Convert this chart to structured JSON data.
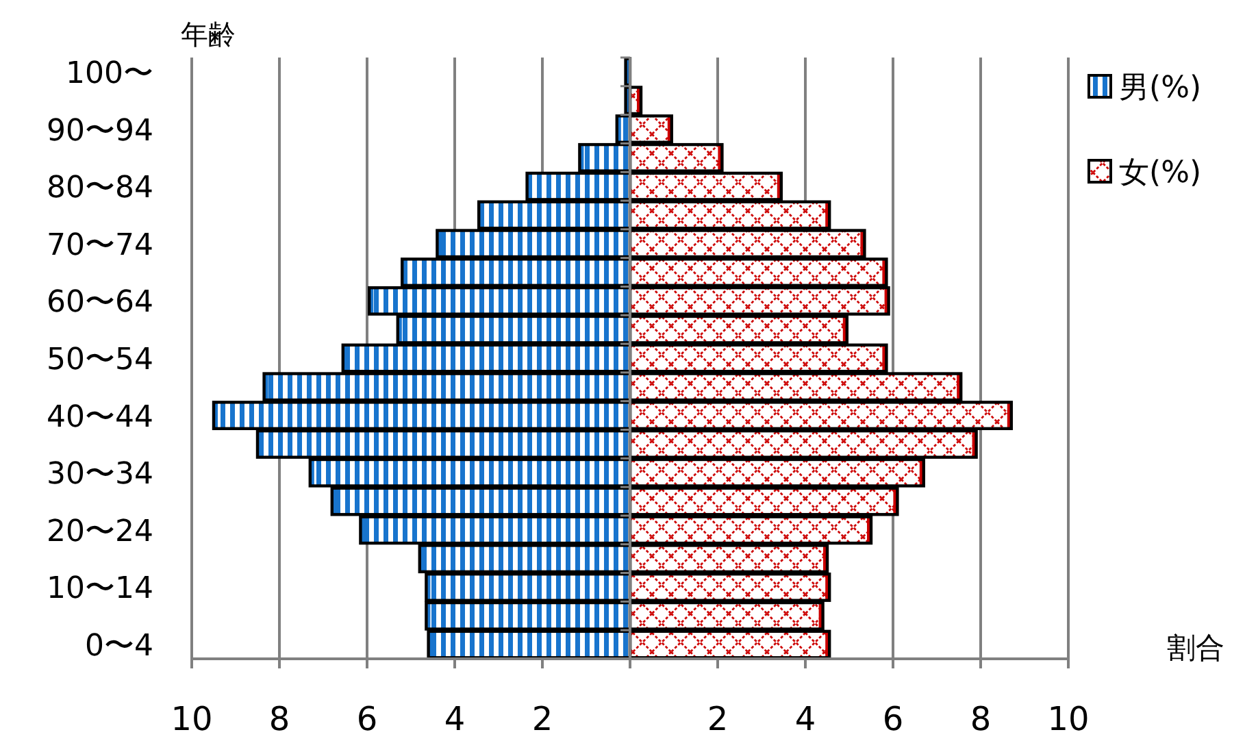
{
  "chart_data": {
    "type": "bar",
    "orientation": "horizontal",
    "stacked": true,
    "ylabel": "年齢",
    "xlabel": "割合",
    "categories": [
      "100〜",
      null,
      "90〜94",
      null,
      "80〜84",
      null,
      "70〜74",
      null,
      "60〜64",
      null,
      "50〜54",
      null,
      "40〜44",
      null,
      "30〜34",
      null,
      "20〜24",
      null,
      "10〜14",
      null,
      "0〜4"
    ],
    "series": [
      {
        "name": "男(%)",
        "color": "#1874cd",
        "values": [
          -0.1,
          -0.1,
          -0.3,
          -1.15,
          -2.35,
          -3.45,
          -4.4,
          -5.2,
          -5.95,
          -5.3,
          -6.55,
          -8.35,
          -9.5,
          -8.5,
          -7.3,
          -6.8,
          -6.15,
          -4.8,
          -4.65,
          -4.65,
          -4.6
        ]
      },
      {
        "name": "女(%)",
        "color": "#cc0000",
        "values": [
          0.0,
          0.25,
          0.95,
          2.1,
          3.45,
          4.55,
          5.35,
          5.85,
          5.9,
          4.95,
          5.85,
          7.55,
          8.7,
          7.9,
          6.7,
          6.1,
          5.5,
          4.5,
          4.55,
          4.4,
          4.55
        ]
      }
    ],
    "xlim": [
      -10,
      10
    ],
    "xticks": [
      {
        "value": -10,
        "label": "10"
      },
      {
        "value": -8,
        "label": "8"
      },
      {
        "value": -6,
        "label": "6"
      },
      {
        "value": -4,
        "label": "4"
      },
      {
        "value": -2,
        "label": "2"
      },
      {
        "value": 0,
        "label": null
      },
      2,
      4,
      6,
      8,
      10
    ],
    "grid": "x",
    "legend": "top right"
  }
}
